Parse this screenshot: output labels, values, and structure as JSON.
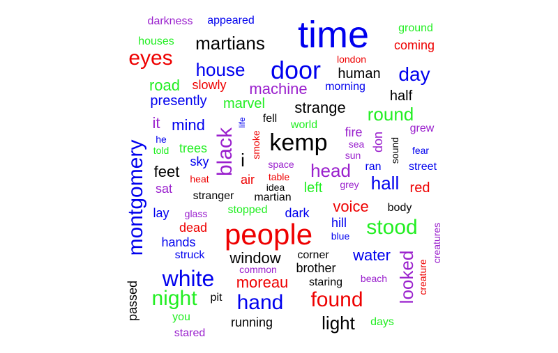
{
  "colors": {
    "black": "#000000",
    "blue": "#0000ee",
    "red": "#ee0000",
    "green": "#22ee22",
    "purple": "#9a20cd"
  },
  "words": [
    {
      "text": "time",
      "color": "blue",
      "weight": 10
    },
    {
      "text": "people",
      "color": "red",
      "weight": 9
    },
    {
      "text": "montgomery",
      "color": "blue",
      "weight": 7
    },
    {
      "text": "kemp",
      "color": "black",
      "weight": 7
    },
    {
      "text": "door",
      "color": "blue",
      "weight": 7
    },
    {
      "text": "white",
      "color": "blue",
      "weight": 6
    },
    {
      "text": "black",
      "color": "purple",
      "weight": 6
    },
    {
      "text": "hand",
      "color": "blue",
      "weight": 6
    },
    {
      "text": "found",
      "color": "red",
      "weight": 6
    },
    {
      "text": "stood",
      "color": "green",
      "weight": 6
    },
    {
      "text": "night",
      "color": "green",
      "weight": 6
    },
    {
      "text": "eyes",
      "color": "red",
      "weight": 6
    },
    {
      "text": "light",
      "color": "black",
      "weight": 5
    },
    {
      "text": "looked",
      "color": "purple",
      "weight": 5
    },
    {
      "text": "day",
      "color": "blue",
      "weight": 5
    },
    {
      "text": "round",
      "color": "green",
      "weight": 5
    },
    {
      "text": "head",
      "color": "purple",
      "weight": 5
    },
    {
      "text": "hall",
      "color": "blue",
      "weight": 5
    },
    {
      "text": "martians",
      "color": "black",
      "weight": 5
    },
    {
      "text": "house",
      "color": "blue",
      "weight": 5
    },
    {
      "text": "i",
      "color": "black",
      "weight": 5
    },
    {
      "text": "voice",
      "color": "red",
      "weight": 4
    },
    {
      "text": "strange",
      "color": "black",
      "weight": 4
    },
    {
      "text": "water",
      "color": "blue",
      "weight": 4
    },
    {
      "text": "moreau",
      "color": "red",
      "weight": 4
    },
    {
      "text": "window",
      "color": "black",
      "weight": 4
    },
    {
      "text": "machine",
      "color": "purple",
      "weight": 4
    },
    {
      "text": "mind",
      "color": "blue",
      "weight": 4
    },
    {
      "text": "it",
      "color": "purple",
      "weight": 4
    },
    {
      "text": "feet",
      "color": "black",
      "weight": 4
    },
    {
      "text": "road",
      "color": "green",
      "weight": 4
    },
    {
      "text": "presently",
      "color": "blue",
      "weight": 4
    },
    {
      "text": "marvel",
      "color": "green",
      "weight": 4
    },
    {
      "text": "human",
      "color": "black",
      "weight": 4
    },
    {
      "text": "half",
      "color": "black",
      "weight": 4
    },
    {
      "text": "red",
      "color": "red",
      "weight": 4
    },
    {
      "text": "left",
      "color": "green",
      "weight": 4
    },
    {
      "text": "brother",
      "color": "black",
      "weight": 4
    },
    {
      "text": "hands",
      "color": "blue",
      "weight": 4
    },
    {
      "text": "running",
      "color": "black",
      "weight": 3
    },
    {
      "text": "lay",
      "color": "blue",
      "weight": 3
    },
    {
      "text": "passed",
      "color": "black",
      "weight": 3
    },
    {
      "text": "fire",
      "color": "purple",
      "weight": 3
    },
    {
      "text": "trees",
      "color": "green",
      "weight": 3
    },
    {
      "text": "air",
      "color": "red",
      "weight": 3
    },
    {
      "text": "sat",
      "color": "purple",
      "weight": 3
    },
    {
      "text": "dead",
      "color": "red",
      "weight": 3
    },
    {
      "text": "dark",
      "color": "blue",
      "weight": 3
    },
    {
      "text": "sky",
      "color": "blue",
      "weight": 3
    },
    {
      "text": "hill",
      "color": "blue",
      "weight": 3
    },
    {
      "text": "coming",
      "color": "red",
      "weight": 3
    },
    {
      "text": "don",
      "color": "purple",
      "weight": 3
    },
    {
      "text": "slowly",
      "color": "red",
      "weight": 3
    },
    {
      "text": "corner",
      "color": "black",
      "weight": 3
    },
    {
      "text": "staring",
      "color": "black",
      "weight": 3
    },
    {
      "text": "stopped",
      "color": "green",
      "weight": 3
    },
    {
      "text": "ground",
      "color": "green",
      "weight": 3
    },
    {
      "text": "morning",
      "color": "blue",
      "weight": 3
    },
    {
      "text": "ran",
      "color": "blue",
      "weight": 3
    },
    {
      "text": "street",
      "color": "blue",
      "weight": 3
    },
    {
      "text": "days",
      "color": "green",
      "weight": 3
    },
    {
      "text": "you",
      "color": "green",
      "weight": 3
    },
    {
      "text": "stared",
      "color": "purple",
      "weight": 3
    },
    {
      "text": "pit",
      "color": "black",
      "weight": 3
    },
    {
      "text": "struck",
      "color": "blue",
      "weight": 3
    },
    {
      "text": "body",
      "color": "black",
      "weight": 3
    },
    {
      "text": "blue",
      "color": "blue",
      "weight": 3
    },
    {
      "text": "beach",
      "color": "purple",
      "weight": 3
    },
    {
      "text": "creature",
      "color": "red",
      "weight": 3
    },
    {
      "text": "creatures",
      "color": "purple",
      "weight": 3
    },
    {
      "text": "common",
      "color": "purple",
      "weight": 3
    },
    {
      "text": "world",
      "color": "green",
      "weight": 3
    },
    {
      "text": "fell",
      "color": "black",
      "weight": 3
    },
    {
      "text": "smoke",
      "color": "red",
      "weight": 3
    },
    {
      "text": "life",
      "color": "blue",
      "weight": 2
    },
    {
      "text": "grew",
      "color": "purple",
      "weight": 3
    },
    {
      "text": "sea",
      "color": "purple",
      "weight": 3
    },
    {
      "text": "sun",
      "color": "purple",
      "weight": 3
    },
    {
      "text": "sound",
      "color": "black",
      "weight": 3
    },
    {
      "text": "fear",
      "color": "blue",
      "weight": 3
    },
    {
      "text": "grey",
      "color": "purple",
      "weight": 3
    },
    {
      "text": "he",
      "color": "blue",
      "weight": 3
    },
    {
      "text": "told",
      "color": "green",
      "weight": 3
    },
    {
      "text": "space",
      "color": "purple",
      "weight": 3
    },
    {
      "text": "heat",
      "color": "red",
      "weight": 3
    },
    {
      "text": "table",
      "color": "red",
      "weight": 3
    },
    {
      "text": "idea",
      "color": "black",
      "weight": 3
    },
    {
      "text": "stranger",
      "color": "black",
      "weight": 3
    },
    {
      "text": "martian",
      "color": "black",
      "weight": 3
    },
    {
      "text": "glass",
      "color": "purple",
      "weight": 3
    },
    {
      "text": "darkness",
      "color": "purple",
      "weight": 3
    },
    {
      "text": "appeared",
      "color": "blue",
      "weight": 3
    },
    {
      "text": "houses",
      "color": "green",
      "weight": 3
    },
    {
      "text": "london",
      "color": "red",
      "weight": 3
    }
  ]
}
